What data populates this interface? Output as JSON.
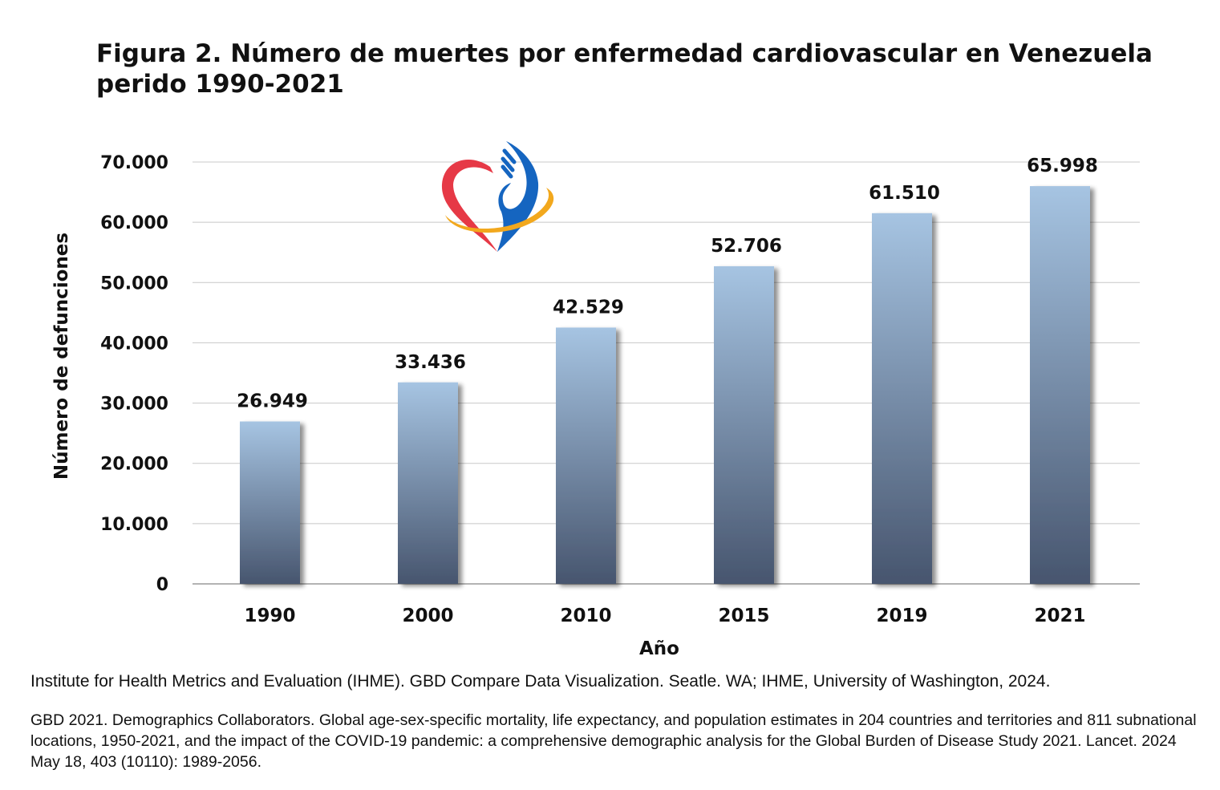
{
  "figure": {
    "title": "Figura 2.  Número de muertes por enfermedad cardiovascular en Venezuela perido 1990-2021"
  },
  "chart_data": {
    "type": "bar",
    "title": "Figura 2.  Número de muertes por enfermedad cardiovascular en Venezuela perido 1990-2021",
    "xlabel": "Año",
    "ylabel": "Número de defunciones",
    "categories": [
      "1990",
      "2000",
      "2010",
      "2015",
      "2019",
      "2021"
    ],
    "values": [
      26949,
      33436,
      42529,
      52706,
      61510,
      65998
    ],
    "value_labels": [
      "26.949",
      "33.436",
      "42.529",
      "52.706",
      "61.510",
      "65.998"
    ],
    "ylim": [
      0,
      70000
    ],
    "yticks": [
      0,
      10000,
      20000,
      30000,
      40000,
      50000,
      60000,
      70000
    ],
    "ytick_labels": [
      "0",
      "10.000",
      "20.000",
      "30.000",
      "40.000",
      "50.000",
      "60.000",
      "70.000"
    ],
    "grid": true,
    "bar_gradient": [
      "#a6c4e2",
      "#47556e"
    ]
  },
  "logo": {
    "colors": [
      "#e63946",
      "#1565c0",
      "#f2a81d"
    ]
  },
  "sources": [
    "Institute for Health Metrics and Evaluation (IHME). GBD Compare Data Visualization. Seatle. WA; IHME, University of Washington, 2024.",
    "GBD 2021. Demographics Collaborators. Global age-sex-specific mortality, life expectancy, and population estimates in 204 countries and territories  and 811 subnational locations, 1950-2021, and the impact of the COVID-19 pandemic: a comprehensive demographic analysis for the Global Burden of Disease Study 2021. Lancet. 2024 May 18, 403 (10110): 1989-2056."
  ]
}
